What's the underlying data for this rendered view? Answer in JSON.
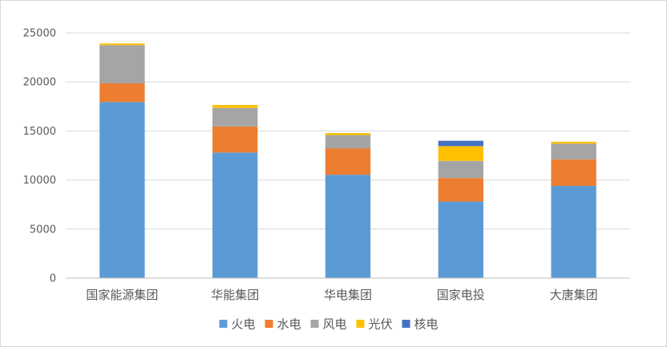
{
  "chart_data": {
    "type": "bar",
    "stacked": true,
    "title": "",
    "xlabel": "",
    "ylabel": "",
    "ylim": [
      0,
      25000
    ],
    "yticks": [
      0,
      5000,
      10000,
      15000,
      20000,
      25000
    ],
    "grid": "horizontal",
    "legend_position": "bottom",
    "categories": [
      "国家能源集团",
      "华能集团",
      "华电集团",
      "国家电投",
      "大唐集团"
    ],
    "series": [
      {
        "name": "火电",
        "color": "#5B9BD5",
        "values": [
          17950,
          12800,
          10530,
          7800,
          9400
        ]
      },
      {
        "name": "水电",
        "color": "#ED7D31",
        "values": [
          1900,
          2650,
          2700,
          2400,
          2700
        ]
      },
      {
        "name": "风电",
        "color": "#A5A5A5",
        "values": [
          3900,
          1900,
          1350,
          1750,
          1600
        ]
      },
      {
        "name": "光伏",
        "color": "#FFC000",
        "values": [
          170,
          300,
          200,
          1500,
          200
        ]
      },
      {
        "name": "核电",
        "color": "#4472C4",
        "values": [
          0,
          0,
          0,
          550,
          0
        ]
      }
    ]
  }
}
